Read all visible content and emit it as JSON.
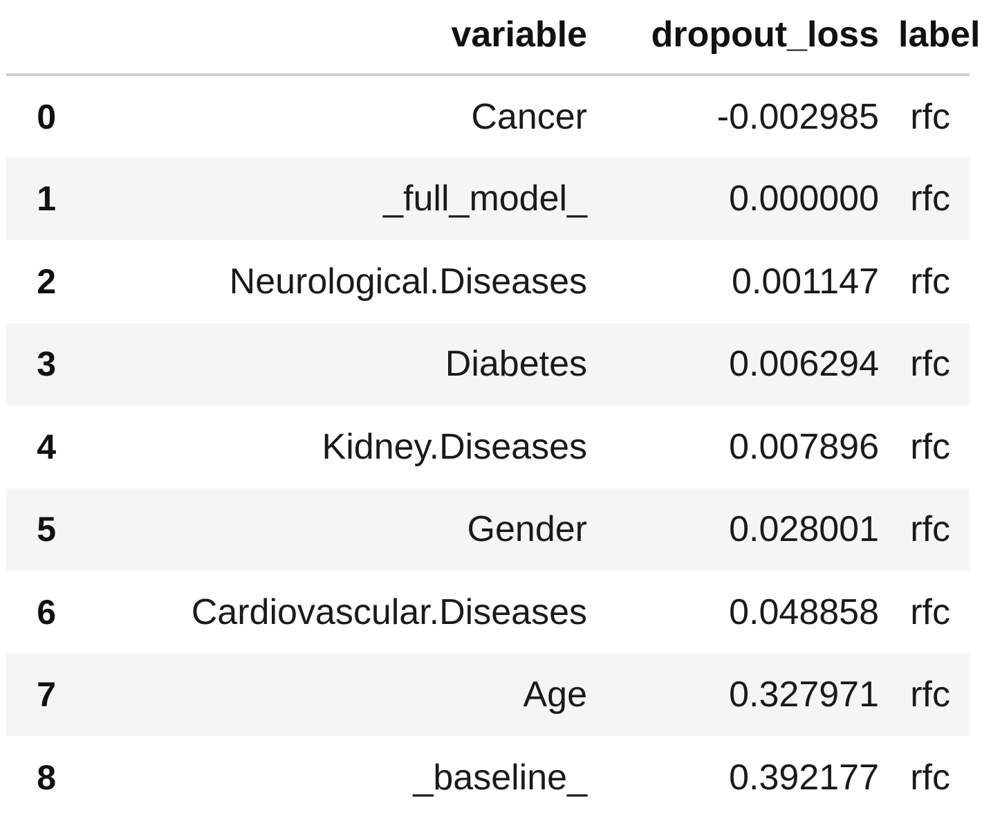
{
  "table": {
    "columns": [
      "",
      "variable",
      "dropout_loss",
      "label"
    ],
    "rows": [
      {
        "index": "0",
        "variable": "Cancer",
        "dropout_loss": "-0.002985",
        "label": "rfc"
      },
      {
        "index": "1",
        "variable": "_full_model_",
        "dropout_loss": "0.000000",
        "label": "rfc"
      },
      {
        "index": "2",
        "variable": "Neurological.Diseases",
        "dropout_loss": "0.001147",
        "label": "rfc"
      },
      {
        "index": "3",
        "variable": "Diabetes",
        "dropout_loss": "0.006294",
        "label": "rfc"
      },
      {
        "index": "4",
        "variable": "Kidney.Diseases",
        "dropout_loss": "0.007896",
        "label": "rfc"
      },
      {
        "index": "5",
        "variable": "Gender",
        "dropout_loss": "0.028001",
        "label": "rfc"
      },
      {
        "index": "6",
        "variable": "Cardiovascular.Diseases",
        "dropout_loss": "0.048858",
        "label": "rfc"
      },
      {
        "index": "7",
        "variable": "Age",
        "dropout_loss": "0.327971",
        "label": "rfc"
      },
      {
        "index": "8",
        "variable": "_baseline_",
        "dropout_loss": "0.392177",
        "label": "rfc"
      }
    ]
  },
  "colors": {
    "stripe": "#f5f5f5",
    "header_rule": "#cfcfcf",
    "text": "#1a1a1a"
  }
}
